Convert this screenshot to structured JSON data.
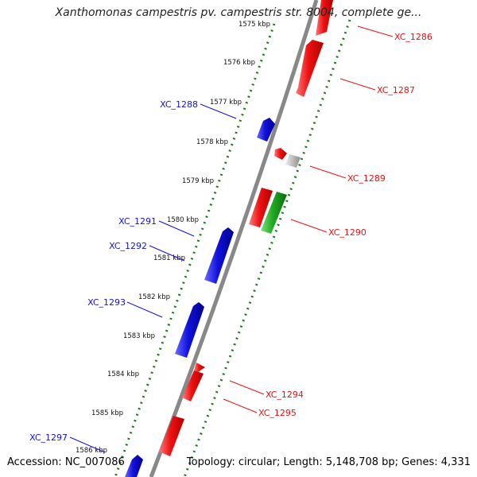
{
  "header": {
    "title": "Xanthomonas campestris pv. campestris str. 8004, complete ge..."
  },
  "footer": {
    "accession": "Accession: NC_007086",
    "summary": "Topology: circular; Length: 5,148,708 bp; Genes: 4,331"
  },
  "colors": {
    "forward_gene": "#ee1111",
    "reverse_gene": "#1111dd",
    "rna_gene": "#22aa22",
    "other_feature": "#bbbbbb",
    "ruler_dots": "#1a7a1a",
    "backbone": "#888888"
  },
  "ticks": [
    "1575 kbp",
    "1576 kbp",
    "1577 kbp",
    "1578 kbp",
    "1579 kbp",
    "1580 kbp",
    "1581 kbp",
    "1582 kbp",
    "1583 kbp",
    "1584 kbp",
    "1585 kbp",
    "1586 kbp"
  ],
  "genes_forward": [
    "XC_1286",
    "XC_1287",
    "XC_1289",
    "XC_1290",
    "XC_1294",
    "XC_1295"
  ],
  "genes_reverse": [
    "XC_1288",
    "XC_1291",
    "XC_1292",
    "XC_1293",
    "XC_1297"
  ]
}
